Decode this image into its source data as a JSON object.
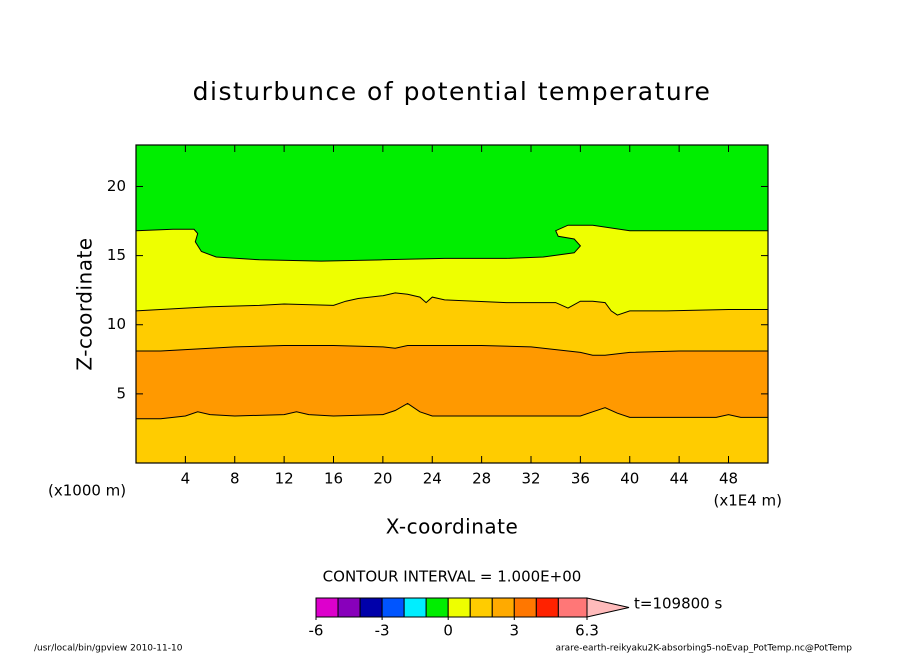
{
  "chart_data": {
    "type": "contour",
    "title": "disturbunce of potential temperature",
    "xlabel": "X-coordinate",
    "ylabel": "Z-coordinate",
    "x_unit_left": "(x1000 m)",
    "x_unit_right": "(x1E4 m)",
    "xlim": [
      0,
      51.2
    ],
    "ylim": [
      0,
      23
    ],
    "xticks": [
      4,
      8,
      12,
      16,
      20,
      24,
      28,
      32,
      36,
      40,
      44,
      48
    ],
    "yticks": [
      5,
      10,
      15,
      20
    ],
    "background_color": "#00ee00",
    "line_color": "#000000",
    "contours": [
      {
        "fill_below": "#eeff00",
        "x": [
          0,
          3,
          4.7,
          5,
          4.8,
          5.3,
          6.5,
          10,
          15,
          20,
          25,
          30,
          33,
          35.5,
          36,
          35.5,
          34.2,
          34,
          35,
          37,
          40,
          51.2
        ],
        "z": [
          16.8,
          16.9,
          16.9,
          16.6,
          16.0,
          15.3,
          14.9,
          14.7,
          14.6,
          14.7,
          14.8,
          14.8,
          14.9,
          15.2,
          15.7,
          16.2,
          16.4,
          16.8,
          17.2,
          17.2,
          16.8,
          16.8
        ]
      },
      {
        "fill_below": "#ffcc00",
        "x": [
          0,
          6,
          10,
          12,
          16,
          17,
          18,
          20,
          21,
          22,
          23,
          23.5,
          24,
          25,
          30,
          34,
          35,
          36,
          37,
          38,
          38.5,
          39,
          40,
          43,
          48,
          51.2
        ],
        "z": [
          11.0,
          11.3,
          11.4,
          11.5,
          11.4,
          11.7,
          11.9,
          12.1,
          12.3,
          12.2,
          12.0,
          11.6,
          12.0,
          11.8,
          11.6,
          11.6,
          11.2,
          11.7,
          11.7,
          11.6,
          11.0,
          10.7,
          11.0,
          11.0,
          11.1,
          11.1
        ]
      },
      {
        "fill_below": "#ff9900",
        "x": [
          0,
          2,
          4,
          8,
          12,
          16,
          20,
          21,
          22,
          24,
          28,
          32,
          36,
          37,
          38,
          40,
          44,
          48,
          51.2
        ],
        "z": [
          8.1,
          8.1,
          8.2,
          8.4,
          8.5,
          8.5,
          8.4,
          8.3,
          8.5,
          8.5,
          8.5,
          8.4,
          8.0,
          7.8,
          7.8,
          8.0,
          8.1,
          8.1,
          8.1
        ]
      },
      {
        "fill_below": "#ffcc00",
        "x": [
          0,
          2,
          4,
          5,
          6,
          8,
          12,
          13,
          14,
          16,
          20,
          21,
          22,
          23,
          24,
          28,
          32,
          36,
          37,
          38,
          39,
          40,
          44,
          47,
          48,
          49,
          51.2
        ],
        "z": [
          3.2,
          3.2,
          3.4,
          3.7,
          3.5,
          3.4,
          3.5,
          3.7,
          3.5,
          3.4,
          3.5,
          3.8,
          4.3,
          3.7,
          3.4,
          3.4,
          3.4,
          3.4,
          3.7,
          4.0,
          3.6,
          3.3,
          3.3,
          3.3,
          3.5,
          3.3,
          3.3
        ]
      }
    ],
    "contour_interval_label": "CONTOUR INTERVAL = 1.000E+00",
    "colorbar": {
      "levels": [
        -6,
        -5,
        -4,
        -3,
        -2,
        -1,
        0,
        1,
        2,
        3,
        4,
        5,
        6.3
      ],
      "colors": [
        "#dd00cc",
        "#8800bb",
        "#0000aa",
        "#0055ff",
        "#00eeff",
        "#00ee00",
        "#eeff00",
        "#ffcc00",
        "#ffaa00",
        "#ff7700",
        "#ff2200",
        "#ff7777"
      ],
      "over_color": "#ffbbbb",
      "ticks": [
        -6,
        -3,
        0,
        3,
        6.3
      ]
    },
    "time_label": "t=109800 s",
    "footer_left": "/usr/local/bin/gpview  2010-11-10",
    "footer_right": "arare-earth-reikyaku2K-absorbing5-noEvap_PotTemp.nc@PotTemp"
  }
}
